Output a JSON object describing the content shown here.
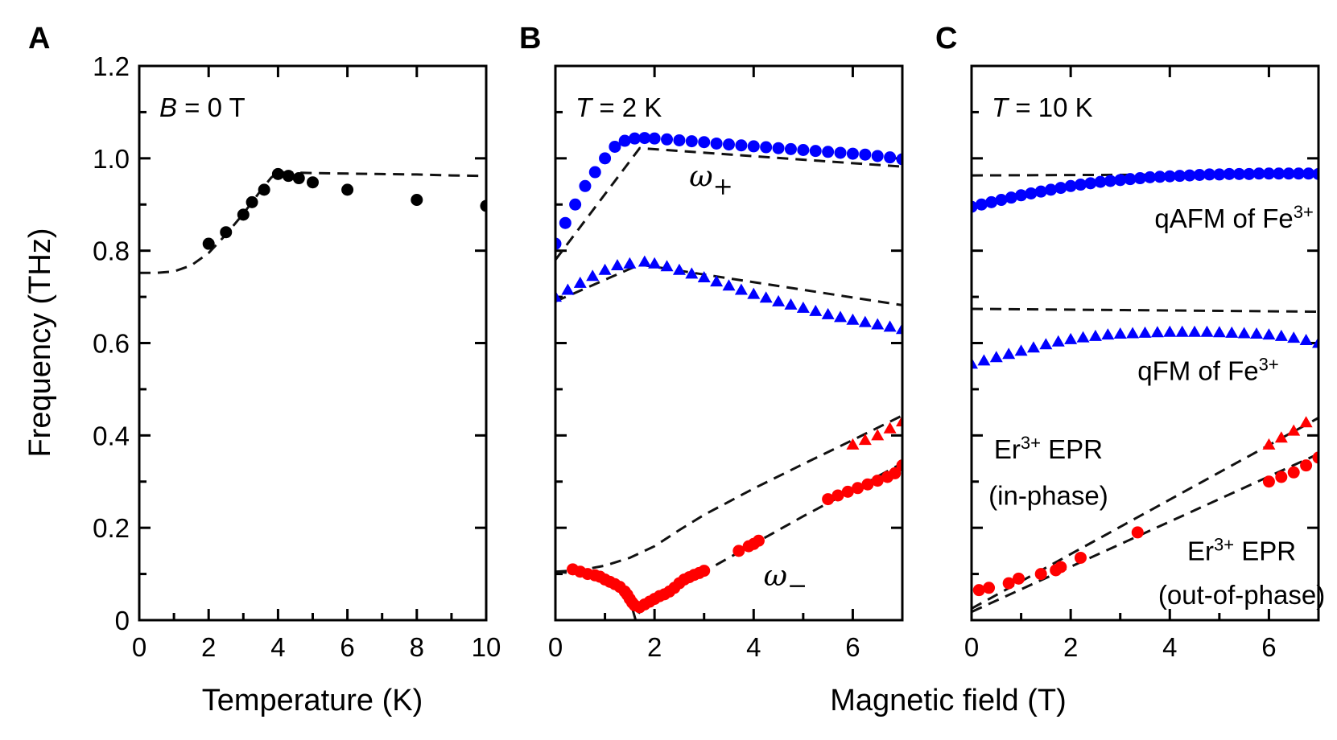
{
  "chart_data": [
    {
      "type": "scatter",
      "panel_label": "A",
      "annotation": "B = 0 T",
      "annotation_italic_part": "B",
      "annotation_rest": " = 0 T",
      "xlabel": "Temperature (K)",
      "ylabel": "Frequency (THz)",
      "xlim": [
        0,
        10
      ],
      "ylim": [
        0,
        1.2
      ],
      "xticks": [
        0,
        2,
        4,
        6,
        8,
        10
      ],
      "xtick_labels": [
        "0",
        "2",
        "4",
        "6",
        "8",
        "10"
      ],
      "xminor": [
        1,
        3,
        5,
        7,
        9
      ],
      "yticks": [
        0,
        0.2,
        0.4,
        0.6,
        0.8,
        1.0,
        1.2
      ],
      "ytick_labels": [
        "0",
        "0.2",
        "0.4",
        "0.6",
        "0.8",
        "1.0",
        "1.2"
      ],
      "yminor": [
        0.1,
        0.3,
        0.5,
        0.7,
        0.9,
        1.1
      ],
      "grid": false,
      "series": [
        {
          "name": "measured",
          "marker": "circle",
          "color": "#000000",
          "x": [
            2,
            2.5,
            3,
            3.25,
            3.6,
            4,
            4.3,
            4.6,
            5,
            6,
            8,
            10
          ],
          "y": [
            0.815,
            0.84,
            0.878,
            0.905,
            0.932,
            0.966,
            0.962,
            0.957,
            0.948,
            0.932,
            0.91,
            0.897
          ]
        },
        {
          "name": "fit",
          "style": "dashed",
          "color": "#111111",
          "x": [
            0,
            0.5,
            1,
            1.5,
            2,
            2.5,
            3,
            3.5,
            3.8,
            4.0,
            5,
            6,
            7,
            8,
            9,
            10
          ],
          "y": [
            0.752,
            0.752,
            0.755,
            0.768,
            0.795,
            0.835,
            0.88,
            0.93,
            0.958,
            0.97,
            0.968,
            0.967,
            0.966,
            0.965,
            0.963,
            0.962
          ]
        }
      ]
    },
    {
      "type": "scatter",
      "panel_label": "B",
      "annotation_italic_part": "T",
      "annotation_rest": " = 2 K",
      "xlabel": "",
      "xlim": [
        0,
        7
      ],
      "ylim": [
        0,
        1.2
      ],
      "xticks": [
        0,
        2,
        4,
        6
      ],
      "xtick_labels": [
        "0",
        "2",
        "4",
        "6"
      ],
      "xminor": [
        1,
        3,
        5
      ],
      "yticks": [
        0,
        0.2,
        0.4,
        0.6,
        0.8,
        1.0,
        1.2
      ],
      "yminor": [
        0.1,
        0.3,
        0.5,
        0.7,
        0.9,
        1.1
      ],
      "grid": false,
      "labels": [
        {
          "text": "ω",
          "sub": "+",
          "x": 2.7,
          "y": 0.94
        },
        {
          "text": "ω",
          "sub": "−",
          "x": 4.2,
          "y": 0.075
        }
      ],
      "series": [
        {
          "name": "ω+ (circles)",
          "marker": "circle",
          "color": "#0000ff",
          "x": [
            0,
            0.2,
            0.4,
            0.6,
            0.8,
            1.0,
            1.2,
            1.4,
            1.6,
            1.8,
            2.0,
            2.25,
            2.5,
            2.75,
            3.0,
            3.25,
            3.5,
            3.75,
            4.0,
            4.25,
            4.5,
            4.75,
            5.0,
            5.25,
            5.5,
            5.75,
            6.0,
            6.25,
            6.5,
            6.75,
            7.0
          ],
          "y": [
            0.815,
            0.86,
            0.9,
            0.94,
            0.97,
            1.0,
            1.025,
            1.038,
            1.043,
            1.044,
            1.043,
            1.041,
            1.039,
            1.037,
            1.035,
            1.032,
            1.03,
            1.028,
            1.026,
            1.024,
            1.022,
            1.02,
            1.018,
            1.016,
            1.014,
            1.012,
            1.01,
            1.008,
            1.005,
            1.002,
            0.998
          ]
        },
        {
          "name": "ω+ lower (triangles)",
          "marker": "triangle",
          "color": "#0000ff",
          "x": [
            0,
            0.25,
            0.5,
            0.75,
            1.0,
            1.25,
            1.5,
            1.8,
            2.0,
            2.25,
            2.5,
            2.75,
            3.0,
            3.25,
            3.5,
            3.75,
            4.0,
            4.25,
            4.5,
            4.75,
            5.0,
            5.25,
            5.5,
            5.75,
            6.0,
            6.25,
            6.5,
            6.75,
            7.0
          ],
          "y": [
            0.7,
            0.715,
            0.73,
            0.745,
            0.758,
            0.768,
            0.772,
            0.776,
            0.772,
            0.766,
            0.758,
            0.75,
            0.742,
            0.733,
            0.724,
            0.715,
            0.706,
            0.698,
            0.69,
            0.683,
            0.676,
            0.669,
            0.662,
            0.656,
            0.65,
            0.645,
            0.64,
            0.635,
            0.63
          ]
        },
        {
          "name": "ω− (circles)",
          "marker": "circle",
          "color": "#ff0000",
          "x": [
            0.35,
            0.5,
            0.65,
            0.8,
            0.9,
            1.0,
            1.1,
            1.2,
            1.3,
            1.4,
            1.45,
            1.5,
            1.55,
            1.6,
            1.7,
            1.8,
            1.9,
            2.0,
            2.1,
            2.2,
            2.3,
            2.4,
            2.5,
            2.6,
            2.7,
            2.8,
            2.9,
            3.0,
            3.7,
            3.9,
            4.0,
            4.1,
            5.5,
            5.7,
            5.9,
            6.1,
            6.3,
            6.5,
            6.7,
            6.85,
            7.0
          ],
          "y": [
            0.11,
            0.105,
            0.1,
            0.097,
            0.094,
            0.088,
            0.083,
            0.078,
            0.072,
            0.062,
            0.055,
            0.046,
            0.038,
            0.032,
            0.028,
            0.034,
            0.04,
            0.046,
            0.052,
            0.056,
            0.062,
            0.07,
            0.08,
            0.088,
            0.093,
            0.098,
            0.102,
            0.107,
            0.15,
            0.16,
            0.165,
            0.172,
            0.262,
            0.27,
            0.278,
            0.286,
            0.294,
            0.302,
            0.31,
            0.318,
            0.335
          ]
        },
        {
          "name": "ω− upper (triangles)",
          "marker": "triangle",
          "color": "#ff0000",
          "x": [
            6.0,
            6.25,
            6.5,
            6.75,
            7.0
          ],
          "y": [
            0.38,
            0.39,
            0.4,
            0.415,
            0.43
          ]
        },
        {
          "name": "fit ω+ upper",
          "style": "dashed",
          "x": [
            0,
            1.7,
            7
          ],
          "y": [
            0.78,
            1.022,
            0.982
          ]
        },
        {
          "name": "fit ω+ lower",
          "style": "dashed",
          "x": [
            0,
            1.7,
            7
          ],
          "y": [
            0.69,
            0.77,
            0.682
          ]
        },
        {
          "name": "fit ω− upper",
          "style": "dashed",
          "x": [
            0,
            0.5,
            1.0,
            1.5,
            2.0,
            2.5,
            3.0,
            4.0,
            5.0,
            6.0,
            7.0
          ],
          "y": [
            0.105,
            0.108,
            0.118,
            0.135,
            0.16,
            0.195,
            0.228,
            0.285,
            0.338,
            0.39,
            0.443
          ]
        },
        {
          "name": "fit ω− lower",
          "style": "dashed",
          "x": [
            0,
            0.5,
            1.0,
            1.3,
            1.5,
            1.62,
            1.75,
            2.0,
            3.0,
            4.0,
            5.0,
            6.0,
            7.0
          ],
          "y": [
            0.105,
            0.1,
            0.085,
            0.07,
            0.045,
            0.0,
            0.03,
            0.045,
            0.105,
            0.165,
            0.225,
            0.282,
            0.34
          ]
        }
      ]
    },
    {
      "type": "scatter",
      "panel_label": "C",
      "annotation_italic_part": "T",
      "annotation_rest": " = 10 K",
      "xlabel": "Magnetic field (T)",
      "xlim": [
        0,
        7
      ],
      "ylim": [
        0,
        1.2
      ],
      "xticks": [
        0,
        2,
        4,
        6
      ],
      "xtick_labels": [
        "0",
        "2",
        "4",
        "6"
      ],
      "xminor": [
        1,
        3,
        5
      ],
      "yticks": [
        0,
        0.2,
        0.4,
        0.6,
        0.8,
        1.0,
        1.2
      ],
      "yminor": [
        0.1,
        0.3,
        0.5,
        0.7,
        0.9,
        1.1
      ],
      "grid": false,
      "labels": [
        {
          "main": "qAFM of Fe",
          "sup": "3+",
          "x": 6.9,
          "y": 0.85,
          "anchor": "end"
        },
        {
          "main": "qFM of Fe",
          "sup": "3+",
          "x": 6.2,
          "y": 0.52,
          "anchor": "end"
        },
        {
          "main": "Er",
          "sup": "3+",
          "rest": " EPR",
          "x": 1.55,
          "y": 0.35,
          "anchor": "middle"
        },
        {
          "main": "(in-phase)",
          "x": 1.55,
          "y": 0.25,
          "anchor": "middle"
        },
        {
          "main": "Er",
          "sup": "3+",
          "rest": " EPR",
          "x": 5.45,
          "y": 0.13,
          "anchor": "middle"
        },
        {
          "main": "(out-of-phase)",
          "x": 5.45,
          "y": 0.035,
          "anchor": "middle"
        }
      ],
      "series": [
        {
          "name": "qAFM of Fe3+",
          "marker": "circle",
          "color": "#0000ff",
          "x": [
            0,
            0.2,
            0.4,
            0.6,
            0.8,
            1.0,
            1.2,
            1.4,
            1.6,
            1.8,
            2.0,
            2.2,
            2.4,
            2.6,
            2.8,
            3.0,
            3.2,
            3.4,
            3.6,
            3.8,
            4.0,
            4.2,
            4.4,
            4.6,
            4.8,
            5.0,
            5.2,
            5.4,
            5.6,
            5.8,
            6.0,
            6.2,
            6.4,
            6.6,
            6.8,
            7.0
          ],
          "y": [
            0.895,
            0.9,
            0.905,
            0.91,
            0.915,
            0.92,
            0.924,
            0.928,
            0.932,
            0.936,
            0.94,
            0.943,
            0.946,
            0.949,
            0.951,
            0.953,
            0.955,
            0.957,
            0.959,
            0.96,
            0.961,
            0.962,
            0.963,
            0.964,
            0.965,
            0.965,
            0.966,
            0.966,
            0.966,
            0.967,
            0.967,
            0.967,
            0.967,
            0.967,
            0.967,
            0.966
          ]
        },
        {
          "name": "qFM of Fe3+",
          "marker": "triangle",
          "color": "#0000ff",
          "x": [
            0,
            0.25,
            0.5,
            0.75,
            1.0,
            1.25,
            1.5,
            1.75,
            2.0,
            2.25,
            2.5,
            2.75,
            3.0,
            3.25,
            3.5,
            3.75,
            4.0,
            4.25,
            4.5,
            4.75,
            5.0,
            5.25,
            5.5,
            5.75,
            6.0,
            6.25,
            6.5,
            6.75,
            7.0
          ],
          "y": [
            0.555,
            0.562,
            0.569,
            0.576,
            0.583,
            0.59,
            0.597,
            0.603,
            0.608,
            0.612,
            0.615,
            0.618,
            0.62,
            0.621,
            0.622,
            0.623,
            0.624,
            0.624,
            0.624,
            0.624,
            0.623,
            0.622,
            0.621,
            0.62,
            0.618,
            0.615,
            0.611,
            0.606,
            0.6
          ]
        },
        {
          "name": "Er3+ EPR (circles)",
          "marker": "circle",
          "color": "#ff0000",
          "x": [
            0.15,
            0.35,
            0.75,
            0.95,
            1.4,
            1.7,
            1.8,
            2.2,
            3.35,
            6.0,
            6.25,
            6.5,
            6.75,
            7.0
          ],
          "y": [
            0.065,
            0.07,
            0.08,
            0.09,
            0.1,
            0.108,
            0.115,
            0.135,
            0.19,
            0.3,
            0.31,
            0.32,
            0.335,
            0.352
          ]
        },
        {
          "name": "Er3+ EPR (triangles)",
          "marker": "triangle",
          "color": "#ff0000",
          "x": [
            6.0,
            6.25,
            6.5,
            6.75
          ],
          "y": [
            0.38,
            0.395,
            0.41,
            0.428
          ]
        },
        {
          "name": "fit qAFM",
          "style": "dashed",
          "x": [
            0,
            7
          ],
          "y": [
            0.963,
            0.966
          ]
        },
        {
          "name": "fit qFM",
          "style": "dashed",
          "x": [
            0,
            7
          ],
          "y": [
            0.674,
            0.668
          ]
        },
        {
          "name": "fit EPR in-phase",
          "style": "dashed",
          "x": [
            0,
            7
          ],
          "y": [
            0.025,
            0.438
          ]
        },
        {
          "name": "fit EPR out-of-phase",
          "style": "dashed",
          "x": [
            0,
            7
          ],
          "y": [
            0.018,
            0.36
          ]
        }
      ]
    }
  ]
}
